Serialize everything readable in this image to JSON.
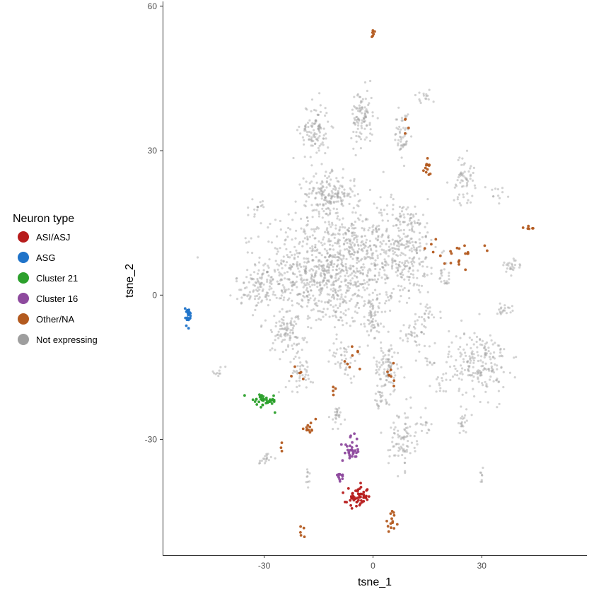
{
  "chart_data": {
    "type": "scatter",
    "title": "",
    "xlabel": "tsne_1",
    "ylabel": "tsne_2",
    "xlim": [
      -58,
      59
    ],
    "ylim": [
      -54,
      61
    ],
    "x_ticks": [
      -30,
      0,
      30
    ],
    "y_ticks": [
      -30,
      0,
      30,
      60
    ],
    "x_tick_labels": [
      "-30",
      "0",
      "30"
    ],
    "y_tick_labels": [
      "-30",
      "0",
      "30",
      "60"
    ],
    "grid": false,
    "legend": {
      "title": "Neuron type",
      "position": "left",
      "entries": [
        "ASI/ASJ",
        "ASG",
        "Cluster 21",
        "Cluster 16",
        "Other/NA",
        "Not expressing"
      ]
    },
    "series": [
      {
        "name": "Not expressing",
        "color": "#9e9e9e",
        "clusters": [
          {
            "cx": -12,
            "cy": 5,
            "sx": 9,
            "sy": 6,
            "n": 900
          },
          {
            "cx": 8,
            "cy": 10,
            "sx": 5,
            "sy": 5,
            "n": 320
          },
          {
            "cx": -12,
            "cy": 21,
            "sx": 3.5,
            "sy": 2,
            "n": 180
          },
          {
            "cx": -16,
            "cy": 34,
            "sx": 2,
            "sy": 3,
            "n": 110
          },
          {
            "cx": -3,
            "cy": 37,
            "sx": 1.5,
            "sy": 3,
            "n": 100
          },
          {
            "cx": 8,
            "cy": 33,
            "sx": 1,
            "sy": 2.5,
            "n": 50
          },
          {
            "cx": 25,
            "cy": 24,
            "sx": 1.5,
            "sy": 2.5,
            "n": 60
          },
          {
            "cx": 29,
            "cy": -14,
            "sx": 4,
            "sy": 3.5,
            "n": 200
          },
          {
            "cx": -30,
            "cy": 2,
            "sx": 4,
            "sy": 2.5,
            "n": 110
          },
          {
            "cx": -24,
            "cy": -8,
            "sx": 2.5,
            "sy": 2,
            "n": 80
          },
          {
            "cx": -20,
            "cy": -16,
            "sx": 1.5,
            "sy": 1.8,
            "n": 45
          },
          {
            "cx": -8,
            "cy": -13,
            "sx": 1.8,
            "sy": 2,
            "n": 40
          },
          {
            "cx": 4,
            "cy": -15,
            "sx": 1.8,
            "sy": 2.5,
            "n": 80
          },
          {
            "cx": 8,
            "cy": -30,
            "sx": 1.8,
            "sy": 3,
            "n": 85
          },
          {
            "cx": 0,
            "cy": -5,
            "sx": 2,
            "sy": 3,
            "n": 60
          },
          {
            "cx": 12,
            "cy": -8,
            "sx": 2,
            "sy": 1.5,
            "n": 40
          },
          {
            "cx": -32,
            "cy": 18,
            "sx": 0.8,
            "sy": 0.8,
            "n": 15
          },
          {
            "cx": -30,
            "cy": -34,
            "sx": 1,
            "sy": 0.6,
            "n": 18
          },
          {
            "cx": 38,
            "cy": 6,
            "sx": 1.5,
            "sy": 0.8,
            "n": 25
          },
          {
            "cx": 30,
            "cy": -38,
            "sx": 0.5,
            "sy": 1,
            "n": 8
          },
          {
            "cx": 25,
            "cy": -26,
            "sx": 1,
            "sy": 1.5,
            "n": 20
          },
          {
            "cx": 14,
            "cy": -27,
            "sx": 1.5,
            "sy": 0.8,
            "n": 15
          },
          {
            "cx": 14,
            "cy": 41,
            "sx": 1.5,
            "sy": 0.8,
            "n": 15
          },
          {
            "cx": 34,
            "cy": 21,
            "sx": 1.5,
            "sy": 0.8,
            "n": 12
          },
          {
            "cx": 36,
            "cy": -3,
            "sx": 1.2,
            "sy": 0.6,
            "n": 20
          },
          {
            "cx": 19,
            "cy": -18,
            "sx": 1.5,
            "sy": 1,
            "n": 15
          },
          {
            "cx": 16,
            "cy": -14,
            "sx": 1.5,
            "sy": 0.5,
            "n": 10
          },
          {
            "cx": -10,
            "cy": -25,
            "sx": 1,
            "sy": 1.5,
            "n": 25
          },
          {
            "cx": -18,
            "cy": -38,
            "sx": 0.5,
            "sy": 1.5,
            "n": 10
          },
          {
            "cx": 2,
            "cy": -22,
            "sx": 1.5,
            "sy": 1.2,
            "n": 25
          },
          {
            "cx": 15,
            "cy": -4,
            "sx": 1.5,
            "sy": 1,
            "n": 20
          },
          {
            "cx": 20,
            "cy": 4,
            "sx": 1.2,
            "sy": 1.5,
            "n": 20
          },
          {
            "cx": -43,
            "cy": -16,
            "sx": 1.2,
            "sy": 0.5,
            "n": 10
          },
          {
            "cx": -5,
            "cy": 12,
            "sx": 1.5,
            "sy": 2,
            "n": 30
          }
        ]
      },
      {
        "name": "Other/NA",
        "color": "#b35a1f",
        "clusters": [
          {
            "cx": 0,
            "cy": 54,
            "sx": 0.3,
            "sy": 0.8,
            "n": 6
          },
          {
            "cx": 15,
            "cy": 26,
            "sx": 0.7,
            "sy": 1.3,
            "n": 12
          },
          {
            "cx": 22,
            "cy": 9,
            "sx": 4,
            "sy": 1.2,
            "n": 22
          },
          {
            "cx": 44,
            "cy": 14,
            "sx": 1.2,
            "sy": 0.3,
            "n": 6
          },
          {
            "cx": 5,
            "cy": -47,
            "sx": 0.8,
            "sy": 0.8,
            "n": 14
          },
          {
            "cx": -18,
            "cy": -28,
            "sx": 1.2,
            "sy": 0.8,
            "n": 12
          },
          {
            "cx": -6,
            "cy": -13,
            "sx": 1.5,
            "sy": 1.5,
            "n": 8
          },
          {
            "cx": 5,
            "cy": -17,
            "sx": 0.8,
            "sy": 1.5,
            "n": 8
          },
          {
            "cx": -20,
            "cy": -49,
            "sx": 0.7,
            "sy": 0.6,
            "n": 5
          },
          {
            "cx": 9,
            "cy": 35,
            "sx": 0.5,
            "sy": 0.8,
            "n": 4
          },
          {
            "cx": -25,
            "cy": -31,
            "sx": 0.5,
            "sy": 0.5,
            "n": 3
          },
          {
            "cx": -20,
            "cy": -16,
            "sx": 1,
            "sy": 0.8,
            "n": 5
          },
          {
            "cx": -10,
            "cy": -20,
            "sx": 0.8,
            "sy": 0.8,
            "n": 4
          }
        ]
      },
      {
        "name": "Cluster 21",
        "color": "#2ca02c",
        "clusters": [
          {
            "cx": -30,
            "cy": -22,
            "sx": 1.8,
            "sy": 0.7,
            "n": 45
          }
        ]
      },
      {
        "name": "Cluster 16",
        "color": "#8e4a9e",
        "clusters": [
          {
            "cx": -6,
            "cy": -32,
            "sx": 1.2,
            "sy": 1.3,
            "n": 32
          },
          {
            "cx": -9,
            "cy": -38,
            "sx": 0.6,
            "sy": 0.4,
            "n": 12
          }
        ]
      },
      {
        "name": "ASI/ASJ",
        "color": "#b71c1c",
        "clusters": [
          {
            "cx": -4,
            "cy": -42,
            "sx": 1.6,
            "sy": 1,
            "n": 55
          }
        ]
      },
      {
        "name": "ASG",
        "color": "#1f73c9",
        "clusters": [
          {
            "cx": -51,
            "cy": -4,
            "sx": 0.45,
            "sy": 1.1,
            "n": 22
          }
        ]
      }
    ]
  }
}
